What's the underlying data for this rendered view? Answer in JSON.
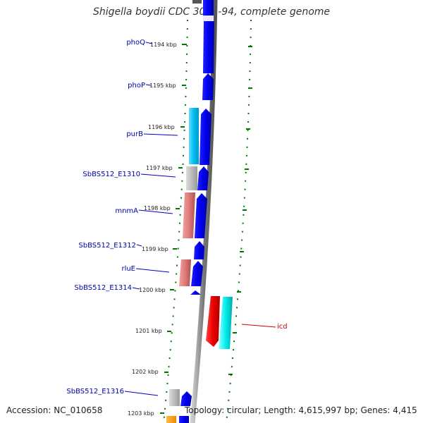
{
  "title": "Shigella boydii CDC 3083-94, complete genome",
  "footer": {
    "accession": "Accession: NC_010658",
    "summary": "Topology: circular; Length: 4,615,997 bp; Genes: 4,415"
  },
  "colors": {
    "backbone": "#888888",
    "forward_gene": "#0000ee",
    "reverse_cyan": "#00ccff",
    "reverse_grey": "#bbbbbb",
    "reverse_salmon": "#e08080",
    "icd_red": "#ee0000",
    "icd_cyan": "#00eeee",
    "tick_green": "#007700",
    "label_blue": "#0000aa",
    "label_red": "#cc0000"
  },
  "kbp_ticks": [
    "1194 kbp",
    "1195 kbp",
    "1196 kbp",
    "1197 kbp",
    "1198 kbp",
    "1199 kbp",
    "1200 kbp",
    "1201 kbp",
    "1202 kbp",
    "1203 kbp"
  ],
  "gene_labels": [
    {
      "name": "phoQ",
      "color": "blue"
    },
    {
      "name": "phoP",
      "color": "blue"
    },
    {
      "name": "purB",
      "color": "blue"
    },
    {
      "name": "SbBS512_E1310",
      "color": "blue"
    },
    {
      "name": "mnmA",
      "color": "blue"
    },
    {
      "name": "SbBS512_E1312",
      "color": "blue"
    },
    {
      "name": "rluE",
      "color": "blue"
    },
    {
      "name": "SbBS512_E1314",
      "color": "blue"
    },
    {
      "name": "SbBS512_E1316",
      "color": "blue"
    },
    {
      "name": "icd",
      "color": "red"
    }
  ]
}
